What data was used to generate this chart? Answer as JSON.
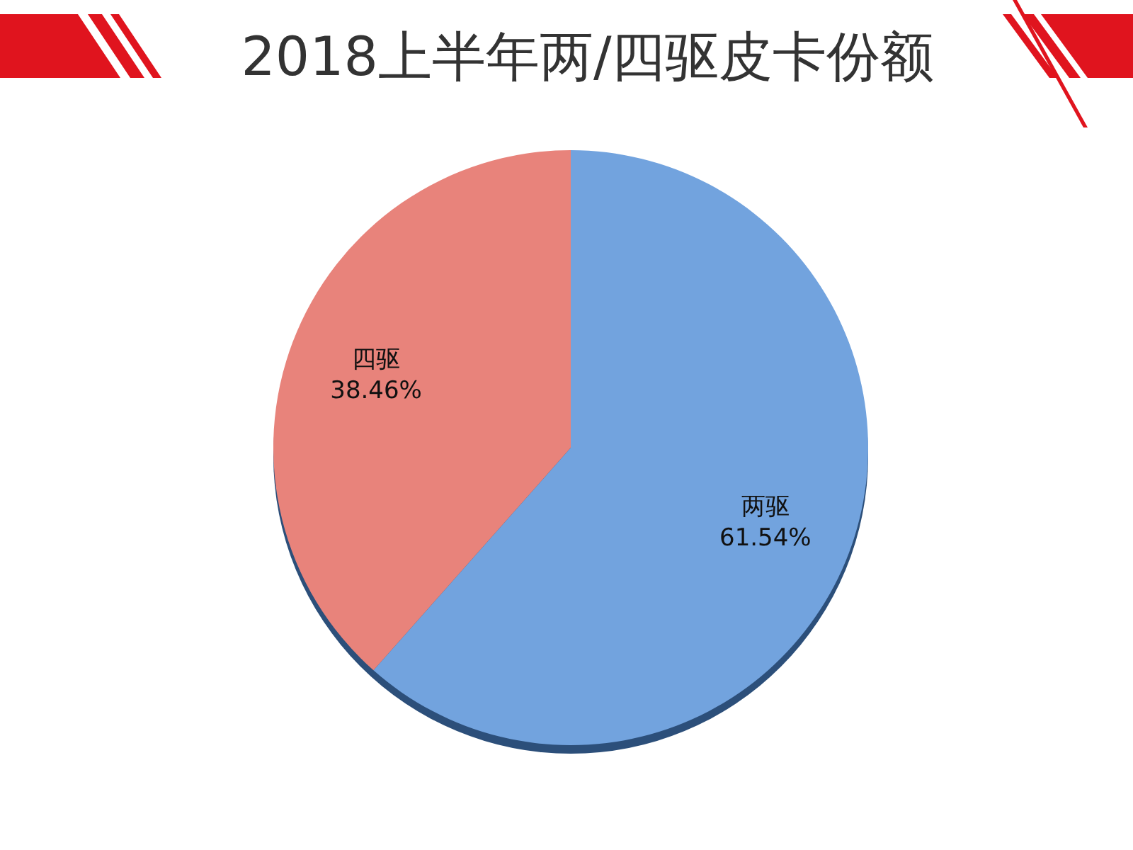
{
  "chart_data": {
    "type": "pie",
    "title": "2018上半年两/四驱皮卡份额",
    "categories": [
      "两驱",
      "四驱"
    ],
    "values": [
      61.54,
      38.46
    ],
    "colors": [
      "#72a3de",
      "#e8837b"
    ],
    "value_labels": [
      "61.54%",
      "38.46%"
    ]
  }
}
